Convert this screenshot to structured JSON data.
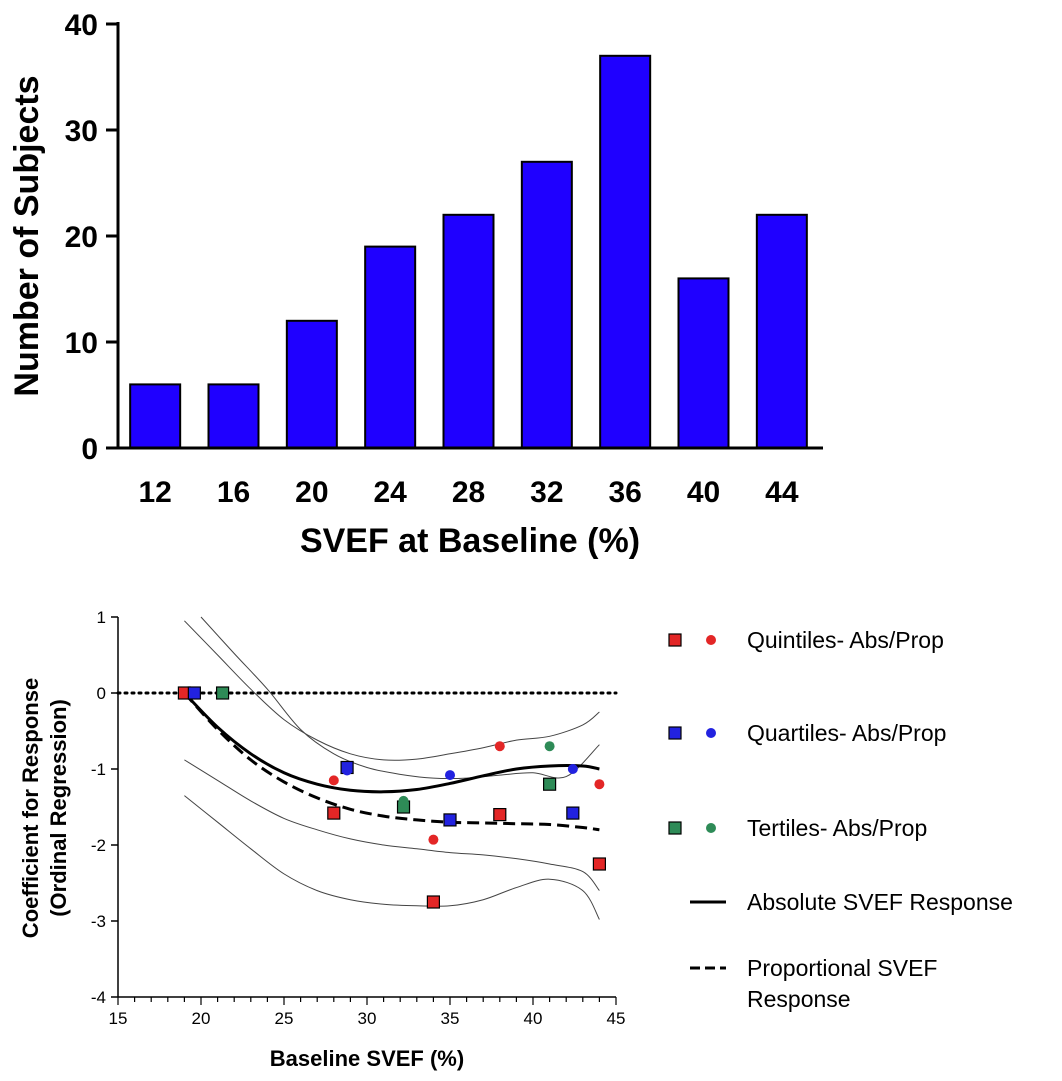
{
  "chart_data": [
    {
      "type": "bar",
      "title": "",
      "xlabel": "SVEF at Baseline (%)",
      "ylabel": "Number of Subjects",
      "categories": [
        "12",
        "16",
        "20",
        "24",
        "28",
        "32",
        "36",
        "40",
        "44"
      ],
      "values": [
        6,
        6,
        12,
        19,
        22,
        27,
        37,
        16,
        22
      ],
      "ylim": [
        0,
        40
      ],
      "yticks": [
        "0",
        "10",
        "20",
        "30",
        "40"
      ],
      "bar_color": "#1f00ff",
      "grid": false,
      "legend": "none"
    },
    {
      "type": "scatter",
      "title": "",
      "xlabel": "Baseline SVEF (%)",
      "ylabel": [
        "Coefficient for Response",
        "(Ordinal Regression)"
      ],
      "xlim": [
        15,
        45
      ],
      "ylim": [
        -4,
        1
      ],
      "xticks": [
        "15",
        "20",
        "25",
        "30",
        "35",
        "40",
        "45"
      ],
      "yticks": [
        "-4",
        "-3",
        "-2",
        "-1",
        "0",
        "1"
      ],
      "reference_line_y": 0,
      "grid": false,
      "legend_position": "right",
      "series": [
        {
          "name": "Quintiles- Abs/Prop",
          "group": "Quintiles",
          "marker": "square",
          "color": "#e32626",
          "x": [
            19,
            28,
            34,
            38,
            44
          ],
          "y": [
            0,
            -1.58,
            -2.75,
            -1.6,
            -2.25
          ]
        },
        {
          "group": "Quintiles",
          "marker": "circle",
          "color": "#e32626",
          "x": [
            19,
            28,
            34,
            38,
            44
          ],
          "y": [
            0,
            -1.15,
            -1.93,
            -0.7,
            -1.2
          ]
        },
        {
          "name": "Quartiles- Abs/Prop",
          "group": "Quartiles",
          "marker": "square",
          "color": "#2222e0",
          "x": [
            19.6,
            28.8,
            35,
            42.4
          ],
          "y": [
            0,
            -0.98,
            -1.67,
            -1.58
          ]
        },
        {
          "group": "Quartiles",
          "marker": "circle",
          "color": "#2222e0",
          "x": [
            19.6,
            28.8,
            35,
            42.4
          ],
          "y": [
            0,
            -1.02,
            -1.08,
            -1.0
          ]
        },
        {
          "name": "Tertiles- Abs/Prop",
          "group": "Tertiles",
          "marker": "square",
          "color": "#2e8b57",
          "x": [
            21.3,
            32.2,
            41
          ],
          "y": [
            0,
            -1.5,
            -1.2
          ]
        },
        {
          "group": "Tertiles",
          "marker": "circle",
          "color": "#2e8b57",
          "x": [
            21.3,
            32.2,
            41
          ],
          "y": [
            0,
            -1.42,
            -0.7
          ]
        }
      ],
      "curves": [
        {
          "name": "Absolute SVEF Response",
          "style": "solid",
          "x": [
            19,
            21,
            23,
            25,
            27,
            29,
            31,
            33,
            35,
            37,
            39,
            41,
            43,
            44
          ],
          "y": [
            0,
            -0.45,
            -0.8,
            -1.05,
            -1.2,
            -1.28,
            -1.3,
            -1.27,
            -1.19,
            -1.09,
            -1.0,
            -0.96,
            -0.96,
            -1.0
          ]
        },
        {
          "name": "Proportional SVEF Response",
          "style": "dashed",
          "x": [
            19,
            21,
            23,
            25,
            27,
            29,
            31,
            33,
            35,
            37,
            39,
            41,
            43,
            44
          ],
          "y": [
            0,
            -0.48,
            -0.88,
            -1.17,
            -1.38,
            -1.53,
            -1.62,
            -1.67,
            -1.7,
            -1.71,
            -1.72,
            -1.73,
            -1.77,
            -1.8
          ]
        }
      ],
      "confidence_bands": [
        {
          "style": "dotted-thin",
          "x": [
            19,
            21,
            23,
            25,
            27,
            29,
            31,
            33,
            35,
            37,
            39,
            41,
            43,
            44
          ],
          "y": [
            0.95,
            0.5,
            0.05,
            -0.35,
            -0.62,
            -0.8,
            -0.88,
            -0.87,
            -0.8,
            -0.72,
            -0.62,
            -0.57,
            -0.42,
            -0.25
          ]
        },
        {
          "style": "dotted-thin",
          "x": [
            19,
            21,
            23,
            25,
            27,
            29,
            31,
            33,
            35,
            37,
            39,
            41,
            43,
            44
          ],
          "y": [
            -1.35,
            -1.7,
            -2.05,
            -2.38,
            -2.6,
            -2.72,
            -2.78,
            -2.8,
            -2.8,
            -2.72,
            -2.56,
            -2.45,
            -2.6,
            -2.98
          ]
        },
        {
          "style": "dotted-thin",
          "x": [
            20,
            22,
            24,
            26,
            28,
            30,
            32,
            34,
            36,
            38,
            40,
            42,
            44
          ],
          "y": [
            1.0,
            0.52,
            0.05,
            -0.48,
            -0.8,
            -0.98,
            -1.07,
            -1.12,
            -1.12,
            -1.08,
            -1.05,
            -1.1,
            -0.68
          ]
        },
        {
          "style": "dotted-thin",
          "x": [
            19,
            21,
            23,
            25,
            27,
            29,
            31,
            33,
            35,
            37,
            39,
            41,
            43,
            44
          ],
          "y": [
            -0.88,
            -1.15,
            -1.42,
            -1.65,
            -1.8,
            -1.92,
            -2.0,
            -2.05,
            -2.1,
            -2.13,
            -2.18,
            -2.25,
            -2.35,
            -2.6
          ]
        }
      ]
    }
  ]
}
